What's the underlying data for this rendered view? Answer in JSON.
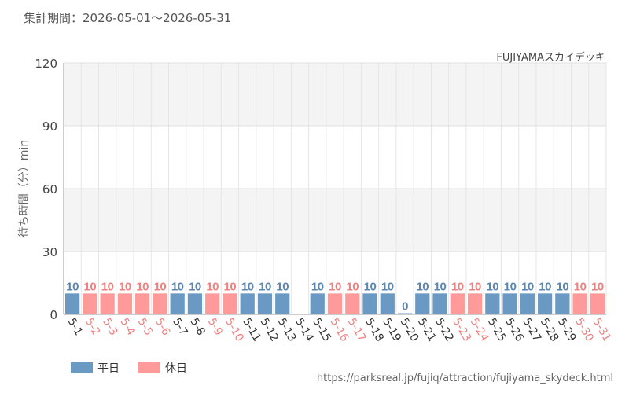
{
  "header": {
    "period": "集計期間：2026-05-01〜2026-05-31"
  },
  "footer": {
    "source": "https://parksreal.jp/fujiq/attraction/fujiyama_skydeck.html"
  },
  "colors": {
    "weekday": "#6a9ac4",
    "holiday": "#ff9a9a",
    "weekday_text": "#5a86b0",
    "holiday_text": "#f08080"
  },
  "chart_data": {
    "type": "bar",
    "title": "FUJIYAMAスカイデッキ",
    "ylabel": "待ち時間（分）min",
    "xlabel": "",
    "ylim": [
      0,
      120
    ],
    "yticks": [
      0,
      30,
      60,
      90,
      120
    ],
    "grid": true,
    "legend_position": "bottom-left",
    "categories": [
      "5-1",
      "5-2",
      "5-3",
      "5-4",
      "5-5",
      "5-6",
      "5-7",
      "5-8",
      "5-9",
      "5-10",
      "5-11",
      "5-12",
      "5-13",
      "5-14",
      "5-15",
      "5-16",
      "5-17",
      "5-18",
      "5-19",
      "5-20",
      "5-21",
      "5-22",
      "5-23",
      "5-24",
      "5-25",
      "5-26",
      "5-27",
      "5-28",
      "5-29",
      "5-30",
      "5-31"
    ],
    "values": [
      10,
      10,
      10,
      10,
      10,
      10,
      10,
      10,
      10,
      10,
      10,
      10,
      10,
      null,
      10,
      10,
      10,
      10,
      10,
      0,
      10,
      10,
      10,
      10,
      10,
      10,
      10,
      10,
      10,
      10,
      10
    ],
    "day_types": [
      "平日",
      "休日",
      "休日",
      "休日",
      "休日",
      "休日",
      "平日",
      "平日",
      "休日",
      "休日",
      "平日",
      "平日",
      "平日",
      "平日",
      "平日",
      "休日",
      "休日",
      "平日",
      "平日",
      "平日",
      "平日",
      "平日",
      "休日",
      "休日",
      "平日",
      "平日",
      "平日",
      "平日",
      "平日",
      "休日",
      "休日"
    ],
    "series": [
      {
        "name": "平日",
        "color": "#6a9ac4"
      },
      {
        "name": "休日",
        "color": "#ff9a9a"
      }
    ]
  }
}
